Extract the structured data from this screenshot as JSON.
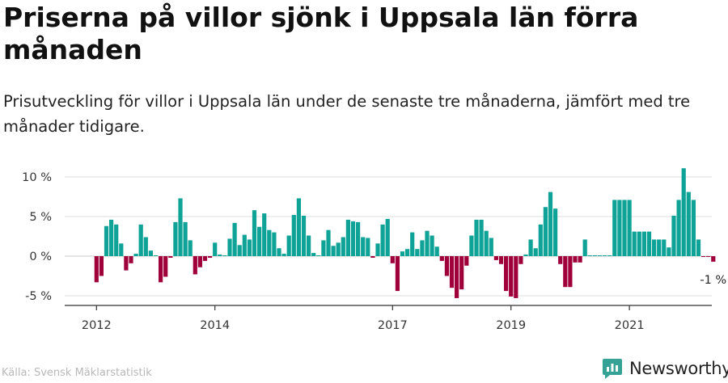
{
  "title": "Priserna på villor sjönk i Uppsala län förra månaden",
  "subtitle": "Prisutveckling för villor i Uppsala län under de senaste tre månaderna, jämfört med tre månader tidigare.",
  "source": "Källa: Svensk Mäklarstatistik",
  "brand": {
    "name": "Newsworthy",
    "icon": "newsworthy-logo-icon"
  },
  "colors": {
    "positive": "#0fa397",
    "negative": "#a0003a",
    "grid": "#dddddd",
    "axis": "#333333"
  },
  "chart_data": {
    "type": "bar",
    "title": "Priserna på villor sjönk i Uppsala län förra månaden",
    "xlabel": "",
    "ylabel": "",
    "ylim": [
      -6,
      11.5
    ],
    "y_ticks": [
      {
        "value": 10,
        "label": "10 %"
      },
      {
        "value": 5,
        "label": "5 %"
      },
      {
        "value": 0,
        "label": "0 %"
      },
      {
        "value": -5,
        "label": "-5 %"
      }
    ],
    "x_ticks": [
      {
        "index": 12,
        "label": "2012"
      },
      {
        "index": 36,
        "label": "2014"
      },
      {
        "index": 72,
        "label": "2017"
      },
      {
        "index": 96,
        "label": "2019"
      },
      {
        "index": 120,
        "label": "2021"
      }
    ],
    "last_value_label": "-1 %",
    "categories_start": "2011-01",
    "values": [
      null,
      null,
      null,
      null,
      null,
      null,
      null,
      null,
      null,
      null,
      null,
      null,
      -3.3,
      -2.5,
      3.8,
      4.6,
      4.0,
      1.6,
      -1.8,
      -0.9,
      0.3,
      4.0,
      2.4,
      0.7,
      0.1,
      -3.3,
      -2.6,
      -0.2,
      4.3,
      7.3,
      4.3,
      2.0,
      -2.3,
      -1.4,
      -0.6,
      -0.2,
      1.7,
      0.2,
      0.1,
      2.2,
      4.2,
      1.4,
      2.7,
      2.1,
      5.8,
      3.7,
      5.4,
      3.3,
      3.0,
      1.0,
      0.3,
      2.6,
      5.2,
      7.3,
      5.1,
      2.6,
      0.4,
      0.1,
      2.0,
      3.3,
      1.3,
      1.7,
      2.4,
      4.6,
      4.4,
      4.3,
      2.4,
      2.3,
      -0.2,
      1.6,
      4.0,
      4.7,
      -0.9,
      -4.4,
      0.6,
      0.9,
      3.0,
      0.9,
      2.0,
      3.2,
      2.6,
      1.2,
      -0.6,
      -2.5,
      -4.0,
      -5.3,
      -4.2,
      -1.2,
      2.6,
      4.6,
      4.6,
      3.2,
      2.3,
      -0.5,
      -1.0,
      -4.4,
      -5.1,
      -5.3,
      -1.0,
      0.2,
      2.1,
      1.0,
      4.0,
      6.2,
      8.1,
      6.0,
      -1.0,
      -3.9,
      -3.9,
      -0.8,
      -0.8,
      2.1,
      0.1,
      0.1,
      0.1,
      0.1,
      0.1,
      7.1,
      7.1,
      7.1,
      7.1,
      3.1,
      3.1,
      3.1,
      3.1,
      2.1,
      2.1,
      2.1,
      1.1,
      5.1,
      7.1,
      11.1,
      8.1,
      7.1,
      2.1,
      -0.1,
      -0.1,
      -0.7
    ]
  }
}
